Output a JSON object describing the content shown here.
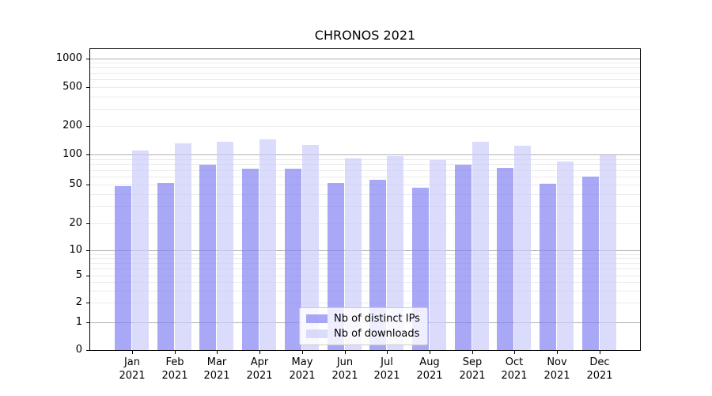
{
  "chart_data": {
    "type": "bar",
    "title": "CHRONOS 2021",
    "categories": [
      "Jan 2021",
      "Feb 2021",
      "Mar 2021",
      "Apr 2021",
      "May 2021",
      "Jun 2021",
      "Jul 2021",
      "Aug 2021",
      "Sep 2021",
      "Oct 2021",
      "Nov 2021",
      "Dec 2021"
    ],
    "series": [
      {
        "name": "Nb of distinct IPs",
        "color": "rgba(131,131,244,0.7)",
        "values": [
          48,
          52,
          79,
          72,
          72,
          52,
          56,
          46,
          79,
          73,
          51,
          60
        ]
      },
      {
        "name": "Nb of downloads",
        "color": "rgba(204,204,249,0.7)",
        "values": [
          110,
          132,
          138,
          144,
          127,
          91,
          97,
          88,
          136,
          124,
          85,
          98
        ]
      }
    ],
    "xlabel": "",
    "ylabel": "",
    "yscale": "symlog",
    "ylim": [
      0,
      1230
    ],
    "yticks": [
      0,
      1,
      2,
      5,
      10,
      20,
      50,
      100,
      200,
      500,
      1000
    ],
    "grid": true,
    "legend_position": "lower center",
    "colors": {
      "grid_major": "#b0b0b0",
      "grid_minor": "#ebebeb",
      "spine": "#000000",
      "background": "#ffffff"
    }
  }
}
